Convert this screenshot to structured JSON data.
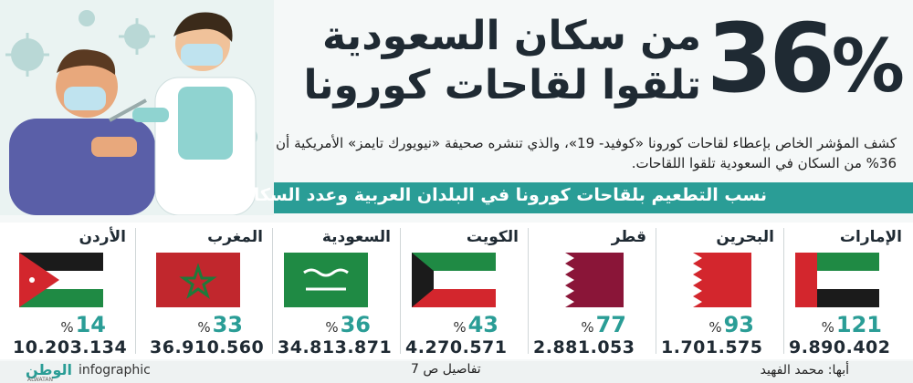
{
  "headline": {
    "percent": "36",
    "percent_sign": "%",
    "line1": "من سكان السعودية",
    "line2": "تلقوا لقاحات كورونا"
  },
  "intro": "كشف المؤشر الخاص بإعطاء لقاحات كورونا «كوفيد- 19»، والذي تنشره صحيفة «نيويورك تايمز» الأمريكية أن 36% من السكان في السعودية تلقوا اللقاحات.",
  "banner": "نسب التطعيم بلقاحات كورونا في البلدان العربية وعدد السكان",
  "countries": [
    {
      "name": "الإمارات",
      "rate": "121",
      "pct": "%",
      "population": "9.890.402",
      "flag": "uae"
    },
    {
      "name": "البحرين",
      "rate": "93",
      "pct": "%",
      "population": "1.701.575",
      "flag": "bahrain"
    },
    {
      "name": "قطر",
      "rate": "77",
      "pct": "%",
      "population": "2.881.053",
      "flag": "qatar"
    },
    {
      "name": "الكويت",
      "rate": "43",
      "pct": "%",
      "population": "4.270.571",
      "flag": "kuwait"
    },
    {
      "name": "السعودية",
      "rate": "36",
      "pct": "%",
      "population": "34.813.871",
      "flag": "saudi"
    },
    {
      "name": "المغرب",
      "rate": "33",
      "pct": "%",
      "population": "36.910.560",
      "flag": "morocco"
    },
    {
      "name": "الأردن",
      "rate": "14",
      "pct": "%",
      "population": "10.203.134",
      "flag": "jordan"
    }
  ],
  "footer": {
    "credit": "أبها: محمد الفهيد",
    "details": "تفاصيل ص 7",
    "logo": "الوطن",
    "logo_sub": "ALWATAN",
    "infographic": "infographic"
  },
  "colors": {
    "accent": "#2a9d96",
    "dark": "#1f2a33"
  }
}
